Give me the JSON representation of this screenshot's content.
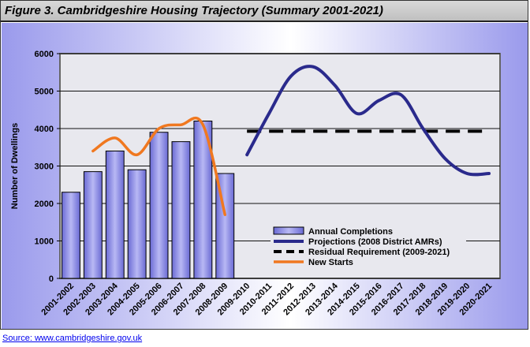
{
  "header": {
    "title": "Figure 3. Cambridgeshire Housing Trajectory (Summary 2001-2021)"
  },
  "footer": {
    "source": "Source: www.cambridgeshire.gov.uk"
  },
  "colors": {
    "bar_fill": "#8585e0",
    "projection_line": "#2a2a8c",
    "residual_line": "#000000",
    "new_starts_line": "#f07820",
    "plot_background": "#e8e8ee"
  },
  "chart_data": {
    "type": "bar",
    "title": "",
    "xlabel": "",
    "ylabel": "Number of Dwellings",
    "ylim": [
      0,
      6000
    ],
    "yticks": [
      0,
      1000,
      2000,
      3000,
      4000,
      5000,
      6000
    ],
    "grid": true,
    "legend_position": "bottom-right",
    "categories": [
      "2001-2002",
      "2002-2003",
      "2003-2004",
      "2004-2005",
      "2005-2006",
      "2006-2007",
      "2007-2008",
      "2008-2009",
      "2009-2010",
      "2010-2011",
      "2011-2012",
      "2012-2013",
      "2013-2014",
      "2014-2015",
      "2015-2016",
      "2016-2017",
      "2017-2018",
      "2018-2019",
      "2019-2020",
      "2020-2021"
    ],
    "series": [
      {
        "name": "Annual Completions",
        "type": "bar",
        "values": [
          2300,
          2850,
          3400,
          2900,
          3900,
          3650,
          4200,
          2800,
          null,
          null,
          null,
          null,
          null,
          null,
          null,
          null,
          null,
          null,
          null,
          null
        ]
      },
      {
        "name": "Projections (2008 District AMRs)",
        "type": "line",
        "values": [
          null,
          null,
          null,
          null,
          null,
          null,
          null,
          null,
          3300,
          4400,
          5400,
          5650,
          5150,
          4400,
          4750,
          4900,
          4000,
          3200,
          2800,
          2800
        ]
      },
      {
        "name": "Residual Requirement (2009-2021)",
        "type": "line",
        "style": "dashed",
        "values": [
          null,
          null,
          null,
          null,
          null,
          null,
          null,
          null,
          3930,
          3930,
          3930,
          3930,
          3930,
          3930,
          3930,
          3930,
          3930,
          3930,
          3930,
          3930
        ]
      },
      {
        "name": "New Starts",
        "type": "line",
        "values": [
          null,
          3400,
          3750,
          3300,
          4000,
          4100,
          4100,
          1700,
          null,
          null,
          null,
          null,
          null,
          null,
          null,
          null,
          null,
          null,
          null,
          null
        ]
      }
    ]
  }
}
